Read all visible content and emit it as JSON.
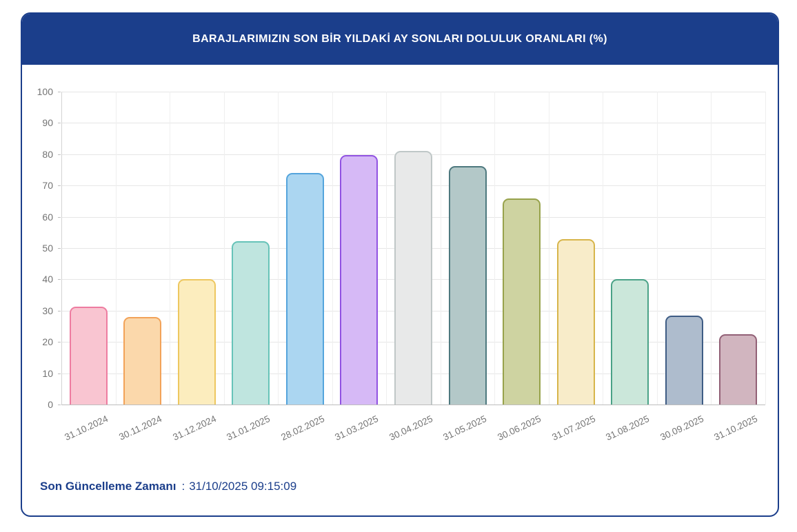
{
  "header": {
    "title": "BARAJLARIMIZIN SON BİR YILDAKİ AY SONLARI DOLULUK ORANLARI (%)"
  },
  "footer": {
    "label": "Son Güncelleme Zamanı",
    "separator": ":",
    "value": "31/10/2025 09:15:09"
  },
  "colors": {
    "header_bg": "#1b3e8b",
    "card_border": "#1b3e8b",
    "footer_text": "#1b3e8b",
    "grid_line": "#e6e6e6",
    "zero_line": "#bdbdbd",
    "tick_text": "#737373",
    "xlabel_text": "#757575"
  },
  "chart_data": {
    "type": "bar",
    "title": "BARAJLARIMIZIN SON BİR YILDAKİ AY SONLARI DOLULUK ORANLARI (%)",
    "xlabel": "",
    "ylabel": "",
    "ylim": [
      0,
      100
    ],
    "ytick_interval": 10,
    "grid": true,
    "legend": false,
    "categories": [
      "31.10.2024",
      "30.11.2024",
      "31.12.2024",
      "31.01.2025",
      "28.02.2025",
      "31.03.2025",
      "30.04.2025",
      "31.05.2025",
      "30.06.2025",
      "31.07.2025",
      "31.08.2025",
      "30.09.2025",
      "31.10.2025"
    ],
    "values": [
      31.3,
      27.9,
      40.0,
      52.3,
      74.1,
      79.7,
      81.0,
      76.3,
      65.9,
      52.8,
      40.0,
      28.5,
      22.5
    ],
    "bar_colors": [
      {
        "fill": "#f9c5d1",
        "border": "#ee7ca0"
      },
      {
        "fill": "#fbd8ab",
        "border": "#f2a258"
      },
      {
        "fill": "#fcedbe",
        "border": "#edc75f"
      },
      {
        "fill": "#bfe5df",
        "border": "#66c3b8"
      },
      {
        "fill": "#abd6f1",
        "border": "#54a4dc"
      },
      {
        "fill": "#d6b9f6",
        "border": "#9153e2"
      },
      {
        "fill": "#e8e9e9",
        "border": "#bfc7c7"
      },
      {
        "fill": "#b3c8c8",
        "border": "#4d787e"
      },
      {
        "fill": "#ced3a1",
        "border": "#97a24b"
      },
      {
        "fill": "#f8ecc9",
        "border": "#d7b54a"
      },
      {
        "fill": "#cbe7da",
        "border": "#4aa287"
      },
      {
        "fill": "#aebccd",
        "border": "#3e5c84"
      },
      {
        "fill": "#d1b5bf",
        "border": "#926076"
      }
    ]
  }
}
